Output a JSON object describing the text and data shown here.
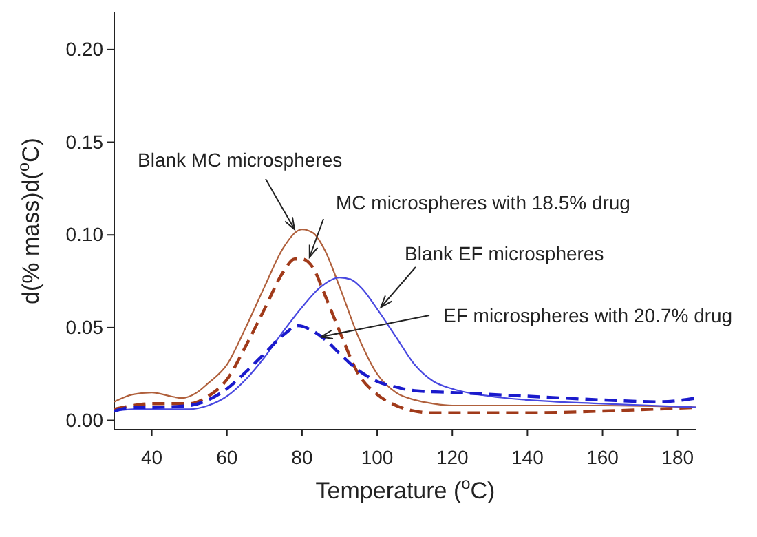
{
  "chart_data": {
    "type": "line",
    "xlabel": "Temperature ($^{o}$C)",
    "ylabel": "d(% mass)d($^{o}$C)",
    "xlim": [
      30,
      185
    ],
    "ylim": [
      -0.005,
      0.22
    ],
    "xticks": [
      40,
      60,
      80,
      100,
      120,
      140,
      160,
      180
    ],
    "yticks": [
      {
        "value": 0,
        "label": "0.00"
      },
      {
        "value": 0.05,
        "label": "0.05"
      },
      {
        "value": 0.1,
        "label": "0.10"
      },
      {
        "value": 0.15,
        "label": "0.15"
      },
      {
        "value": 0.2,
        "label": "0.20"
      }
    ],
    "grid": false,
    "marker": "none",
    "series": [
      {
        "color": "#b0603c",
        "line_style": "solid",
        "x": [
          30,
          35,
          40,
          45,
          48,
          52,
          55,
          60,
          65,
          70,
          75,
          80,
          83,
          86,
          90,
          95,
          100,
          105,
          110,
          115,
          120,
          140,
          160,
          185
        ],
        "values": [
          0.01,
          0.014,
          0.015,
          0.013,
          0.012,
          0.015,
          0.02,
          0.03,
          0.05,
          0.072,
          0.093,
          0.103,
          0.101,
          0.092,
          0.072,
          0.045,
          0.025,
          0.015,
          0.011,
          0.009,
          0.008,
          0.008,
          0.008,
          0.007
        ]
      },
      {
        "color": "#a03a1a",
        "line_style": "dashed",
        "x": [
          30,
          35,
          40,
          45,
          50,
          55,
          60,
          65,
          70,
          75,
          78,
          80,
          83,
          86,
          90,
          95,
          100,
          105,
          110,
          115,
          120,
          140,
          160,
          185
        ],
        "values": [
          0.006,
          0.008,
          0.009,
          0.009,
          0.009,
          0.013,
          0.022,
          0.04,
          0.06,
          0.08,
          0.087,
          0.087,
          0.082,
          0.068,
          0.048,
          0.025,
          0.014,
          0.008,
          0.005,
          0.004,
          0.004,
          0.004,
          0.005,
          0.007
        ]
      },
      {
        "color": "#4848e0",
        "line_style": "solid",
        "x": [
          30,
          35,
          40,
          50,
          55,
          60,
          65,
          70,
          75,
          80,
          85,
          90,
          93,
          96,
          100,
          105,
          110,
          115,
          120,
          130,
          140,
          160,
          185
        ],
        "values": [
          0.005,
          0.006,
          0.006,
          0.006,
          0.008,
          0.013,
          0.022,
          0.034,
          0.048,
          0.061,
          0.072,
          0.077,
          0.076,
          0.071,
          0.06,
          0.045,
          0.03,
          0.021,
          0.017,
          0.013,
          0.011,
          0.009,
          0.007
        ]
      },
      {
        "color": "#1a1acc",
        "line_style": "dashed",
        "x": [
          30,
          35,
          40,
          50,
          55,
          60,
          65,
          70,
          75,
          79,
          83,
          87,
          90,
          95,
          100,
          105,
          110,
          120,
          140,
          160,
          175,
          185
        ],
        "values": [
          0.005,
          0.007,
          0.007,
          0.008,
          0.011,
          0.017,
          0.026,
          0.036,
          0.046,
          0.051,
          0.048,
          0.042,
          0.036,
          0.027,
          0.021,
          0.018,
          0.016,
          0.015,
          0.013,
          0.011,
          0.01,
          0.012
        ]
      }
    ],
    "annotations": [
      {
        "text": "Blank MC microspheres",
        "x": 78,
        "y": 0.103
      },
      {
        "text": "MC microspheres with 18.5% drug",
        "x": 82,
        "y": 0.088
      },
      {
        "text": "Blank EF microspheres",
        "x": 101,
        "y": 0.061
      },
      {
        "text": "EF microspheres with 20.7% drug",
        "x": 85,
        "y": 0.045
      }
    ]
  }
}
